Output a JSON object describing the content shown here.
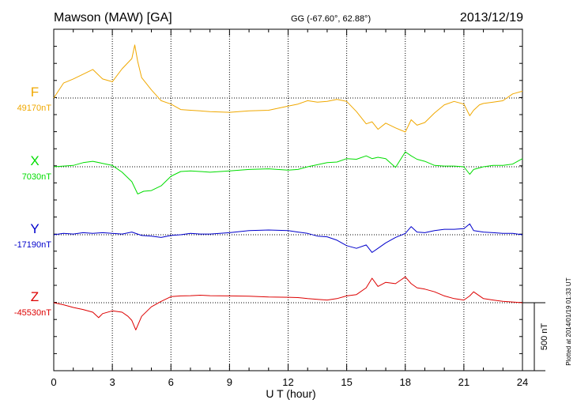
{
  "header": {
    "station": "Mawson (MAW)  [GA]",
    "coords": "GG (-67.60°,  62.88°)",
    "date": "2013/12/19"
  },
  "plotted_note": "Plotted at 2014/01/19 01:33 UT",
  "chart_data": {
    "type": "line",
    "xlabel": "U T (hour)",
    "xlim": [
      0,
      24
    ],
    "x_ticks": [
      "0",
      "3",
      "6",
      "9",
      "12",
      "15",
      "18",
      "21",
      "24"
    ],
    "scale_bar_label": "500 nT",
    "scale_bar_value": 500,
    "series": [
      {
        "name": "F",
        "baseline_label": "49170nT",
        "baseline": 49170,
        "color": "#f0a800",
        "x": [
          0,
          0.5,
          1,
          1.5,
          2,
          2.5,
          3,
          3.5,
          4,
          4.15,
          4.3,
          4.5,
          5,
          5.5,
          6,
          6.5,
          7,
          7.5,
          8,
          9,
          10,
          11,
          12,
          12.5,
          13,
          13.5,
          14,
          14.5,
          15,
          15.5,
          16,
          16.3,
          16.6,
          17,
          17.5,
          18,
          18.3,
          18.6,
          19,
          19.5,
          20,
          20.5,
          21,
          21.3,
          21.5,
          21.8,
          22,
          22.5,
          23,
          23.5,
          24
        ],
        "y": [
          49170,
          49280,
          49310,
          49345,
          49380,
          49310,
          49290,
          49385,
          49460,
          49560,
          49440,
          49320,
          49230,
          49150,
          49125,
          49085,
          49080,
          49075,
          49070,
          49065,
          49075,
          49080,
          49110,
          49125,
          49150,
          49140,
          49145,
          49160,
          49145,
          49070,
          48980,
          48995,
          48940,
          48985,
          48950,
          48920,
          49010,
          48970,
          48990,
          49060,
          49120,
          49145,
          49125,
          49040,
          49080,
          49120,
          49130,
          49140,
          49150,
          49200,
          49220
        ]
      },
      {
        "name": "X",
        "baseline_label": "7030nT",
        "baseline": 7030,
        "color": "#00dd00",
        "x": [
          0,
          0.5,
          1,
          1.5,
          2,
          2.5,
          3,
          3.5,
          4,
          4.3,
          4.6,
          5,
          5.5,
          6,
          6.5,
          7,
          7.5,
          8,
          9,
          10,
          11,
          12,
          12.5,
          13,
          13.5,
          14,
          14.5,
          15,
          15.5,
          16,
          16.3,
          16.6,
          17,
          17.5,
          18,
          18.3,
          18.6,
          19,
          19.5,
          20,
          20.5,
          21,
          21.3,
          21.5,
          22,
          22.5,
          23,
          23.5,
          24
        ],
        "y": [
          7030,
          7035,
          7040,
          7060,
          7070,
          7055,
          7040,
          6990,
          6920,
          6830,
          6850,
          6855,
          6890,
          6960,
          6995,
          7000,
          6995,
          6990,
          7000,
          7010,
          7015,
          7005,
          7010,
          7030,
          7045,
          7060,
          7065,
          7090,
          7085,
          7110,
          7090,
          7100,
          7090,
          7025,
          7140,
          7110,
          7085,
          7070,
          7040,
          7035,
          7035,
          7030,
          6975,
          7010,
          7030,
          7040,
          7040,
          7050,
          7090
        ]
      },
      {
        "name": "Y",
        "baseline_label": "-17190nT",
        "baseline": -17190,
        "color": "#0000cc",
        "x": [
          0,
          0.5,
          1,
          1.5,
          2,
          2.5,
          3,
          3.5,
          4,
          4.5,
          5,
          5.5,
          6,
          6.5,
          7,
          7.5,
          8,
          9,
          10,
          11,
          12,
          12.5,
          13,
          13.5,
          14,
          14.5,
          15,
          15.5,
          16,
          16.3,
          16.6,
          17,
          17.5,
          18,
          18.3,
          18.6,
          19,
          19.5,
          20,
          20.5,
          21,
          21.3,
          21.5,
          22,
          22.5,
          23,
          23.5,
          24
        ],
        "y": [
          -17190,
          -17180,
          -17185,
          -17175,
          -17180,
          -17175,
          -17180,
          -17185,
          -17170,
          -17195,
          -17200,
          -17210,
          -17195,
          -17190,
          -17180,
          -17185,
          -17185,
          -17175,
          -17160,
          -17155,
          -17160,
          -17170,
          -17180,
          -17200,
          -17205,
          -17230,
          -17270,
          -17290,
          -17265,
          -17320,
          -17290,
          -17250,
          -17210,
          -17180,
          -17130,
          -17170,
          -17175,
          -17160,
          -17150,
          -17150,
          -17145,
          -17110,
          -17160,
          -17170,
          -17175,
          -17180,
          -17180,
          -17190
        ]
      },
      {
        "name": "Z",
        "baseline_label": "-45530nT",
        "baseline": -45530,
        "color": "#dd0000",
        "x": [
          0,
          0.5,
          1,
          1.5,
          2,
          2.3,
          2.5,
          3,
          3.5,
          3.8,
          4,
          4.2,
          4.5,
          5,
          5.5,
          6,
          6.5,
          7,
          7.5,
          8,
          9,
          10,
          11,
          12,
          12.5,
          13,
          13.5,
          14,
          14.5,
          15,
          15.5,
          16,
          16.3,
          16.6,
          17,
          17.5,
          18,
          18.3,
          18.6,
          19,
          19.5,
          20,
          20.5,
          21,
          21.3,
          21.5,
          22,
          22.5,
          23,
          23.5,
          24
        ],
        "y": [
          -45530,
          -45545,
          -45565,
          -45580,
          -45600,
          -45640,
          -45610,
          -45590,
          -45600,
          -45630,
          -45660,
          -45730,
          -45630,
          -45560,
          -45520,
          -45485,
          -45480,
          -45478,
          -45475,
          -45478,
          -45480,
          -45482,
          -45488,
          -45490,
          -45492,
          -45500,
          -45505,
          -45510,
          -45500,
          -45480,
          -45470,
          -45420,
          -45350,
          -45410,
          -45380,
          -45390,
          -45340,
          -45390,
          -45420,
          -45430,
          -45450,
          -45480,
          -45500,
          -45510,
          -45480,
          -45450,
          -45500,
          -45510,
          -45520,
          -45525,
          -45530
        ]
      }
    ]
  }
}
